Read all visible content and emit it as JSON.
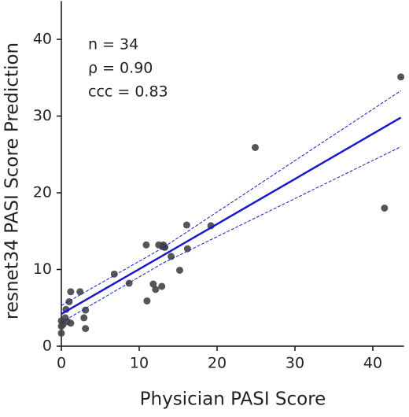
{
  "chart_data": {
    "type": "scatter",
    "xlabel": "Physician PASI Score",
    "ylabel": "resnet34 PASI Score Prediction",
    "annotations": [
      "n = 34",
      "ρ = 0.90",
      "ccc = 0.83"
    ],
    "x": [
      0,
      0,
      0,
      0.5,
      0.6,
      1,
      1.2,
      1.2,
      2.4,
      2.9,
      3.1,
      3.1,
      6.8,
      8.7,
      10.9,
      11,
      11.8,
      12.1,
      12.5,
      12.9,
      13.1,
      13.2,
      13.3,
      14.1,
      15.2,
      16.1,
      16.2,
      19.2,
      24.9,
      41.5,
      43.6,
      0.2,
      0.8,
      13.0
    ],
    "values": [
      1.7,
      2.6,
      3.3,
      3.7,
      4.8,
      5.8,
      7.1,
      3.0,
      7.1,
      3.7,
      4.7,
      2.3,
      9.4,
      8.2,
      13.2,
      5.9,
      8.1,
      7.4,
      13.2,
      7.8,
      13.2,
      12.9,
      12.9,
      11.7,
      9.9,
      15.8,
      12.7,
      15.7,
      25.9,
      18.0,
      35.1,
      2.8,
      3.2,
      13.0
    ],
    "color": "#444444",
    "fit": {
      "color": "#1a1acc",
      "x": [
        0,
        13,
        43.6
      ],
      "values": [
        4.2,
        11.8,
        29.8
      ],
      "upper": [
        5.3,
        12.8,
        33.3
      ],
      "lower": [
        3.1,
        10.8,
        26.0
      ]
    },
    "xlim": [
      0,
      44
    ],
    "ylim": [
      0,
      45
    ],
    "xticks": [
      0,
      10,
      20,
      30,
      40
    ],
    "yticks": [
      0,
      10,
      20,
      30,
      40
    ]
  }
}
